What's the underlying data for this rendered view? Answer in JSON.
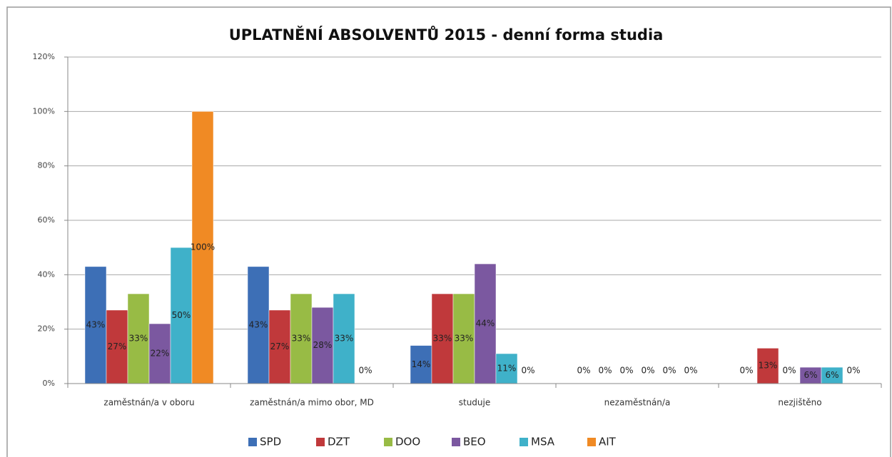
{
  "chart_data": {
    "type": "bar",
    "title": "UPLATNĚNÍ ABSOLVENTŮ 2015 - denní forma studia",
    "categories": [
      "zaměstnán/a v oboru",
      "zaměstnán/a mimo obor, MD",
      "studuje",
      "nezaměstnán/a",
      "nezjištěno"
    ],
    "series": [
      {
        "name": "SPD",
        "color": "#3d6fb6",
        "values": [
          43,
          43,
          14,
          0,
          0
        ],
        "value_labels": [
          "43%",
          "43%",
          "14%",
          "0%",
          "0%"
        ]
      },
      {
        "name": "DZT",
        "color": "#c0393b",
        "values": [
          27,
          27,
          33,
          0,
          13
        ],
        "value_labels": [
          "27%",
          "27%",
          "33%",
          "0%",
          "13%"
        ]
      },
      {
        "name": "DOO",
        "color": "#98bb45",
        "values": [
          33,
          33,
          33,
          0,
          0
        ],
        "value_labels": [
          "33%",
          "33%",
          "33%",
          "0%",
          "0%"
        ]
      },
      {
        "name": "BEO",
        "color": "#7b58a0",
        "values": [
          22,
          28,
          44,
          0,
          6
        ],
        "value_labels": [
          "22%",
          "28%",
          "44%",
          "0%",
          "6%"
        ]
      },
      {
        "name": "MSA",
        "color": "#3fb1c9",
        "values": [
          50,
          33,
          11,
          0,
          6
        ],
        "value_labels": [
          "50%",
          "33%",
          "11%",
          "0%",
          "6%"
        ]
      },
      {
        "name": "AIT",
        "color": "#f08a24",
        "values": [
          100,
          0,
          0,
          0,
          0
        ],
        "value_labels": [
          "100%",
          "0%",
          "0%",
          "0%",
          "0%"
        ]
      }
    ],
    "ylim": [
      0,
      120
    ],
    "yticks": [
      {
        "value": 0,
        "label": "0%"
      },
      {
        "value": 20,
        "label": "20%"
      },
      {
        "value": 40,
        "label": "40%"
      },
      {
        "value": 60,
        "label": "60%"
      },
      {
        "value": 80,
        "label": "80%"
      },
      {
        "value": 100,
        "label": "100%"
      },
      {
        "value": 120,
        "label": "120%"
      }
    ],
    "grid": true,
    "legend": "bottom"
  }
}
